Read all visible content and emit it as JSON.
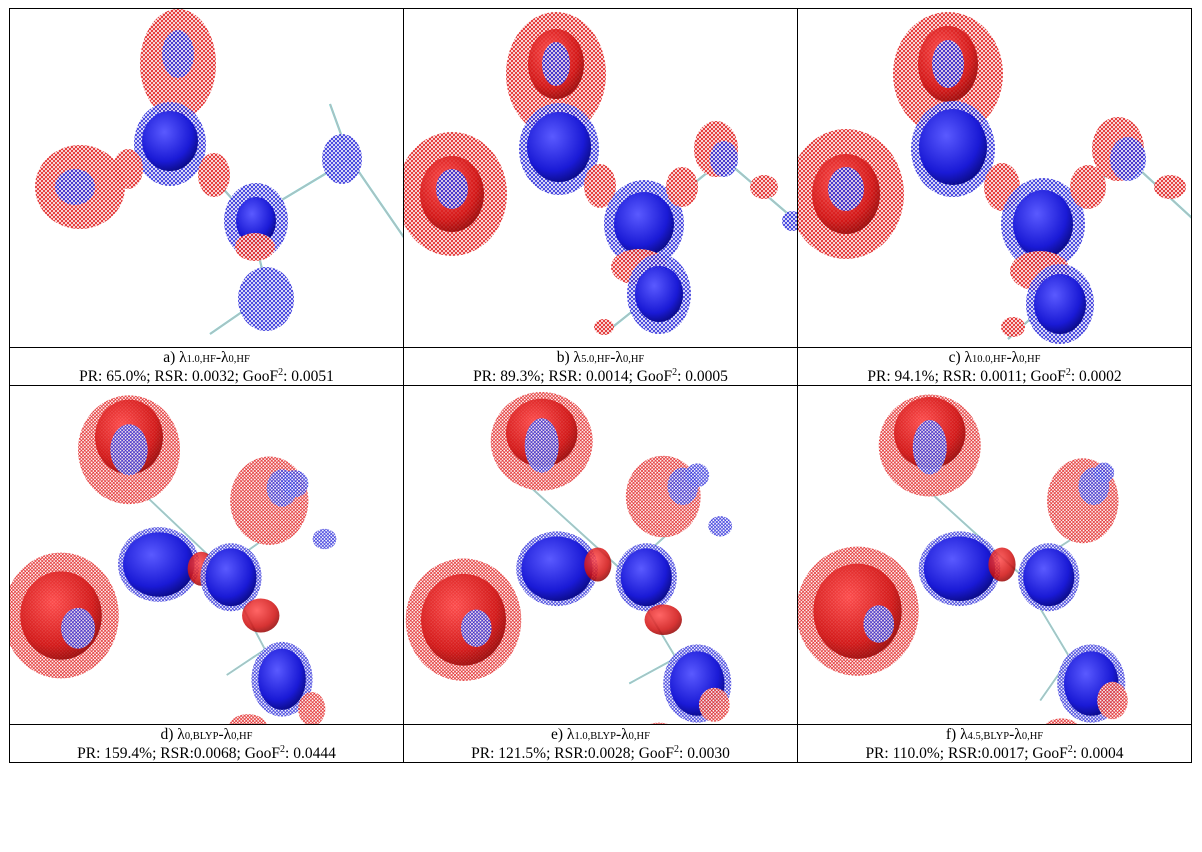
{
  "panels": [
    {
      "letter": "a)",
      "sub1": "1.0,HF",
      "sub2": "0,HF",
      "pr": "65.0%",
      "rsr": "0.0032",
      "goof": "0.0051",
      "rsr_sep": " "
    },
    {
      "letter": "b)",
      "sub1": "5.0,HF",
      "sub2": "0,HF",
      "pr": "89.3%",
      "rsr": "0.0014",
      "goof": "0.0005",
      "rsr_sep": " "
    },
    {
      "letter": "c)",
      "sub1": "10.0,HF",
      "sub2": "0,HF",
      "pr": "94.1%",
      "rsr": "0.0011",
      "goof": "0.0002",
      "rsr_sep": " "
    },
    {
      "letter": "d)",
      "sub1": "0,BLYP",
      "sub2": "0,HF",
      "pr": "159.4%",
      "rsr": "0.0068",
      "goof": "0.0444",
      "rsr_sep": ""
    },
    {
      "letter": "e)",
      "sub1": "1.0,BLYP",
      "sub2": "0,HF",
      "pr": "121.5%",
      "rsr": "0.0028",
      "goof": "0.0030",
      "rsr_sep": ""
    },
    {
      "letter": "f)",
      "sub1": "4.5,BLYP",
      "sub2": "0,HF",
      "pr": "110.0%",
      "rsr": "0.0017",
      "goof": "0.0004",
      "rsr_sep": ""
    }
  ],
  "labels": {
    "lambda": "λ",
    "minus": "-",
    "pr_prefix": "PR: ",
    "rsr_prefix": "RSR:",
    "goof_prefix": "GooF",
    "goof_sup": "2",
    "goof_colon": ": ",
    "sep": "; "
  },
  "colors": {
    "positive": "#e01818",
    "negative": "#1a1ad6",
    "bond": "#7fd3d3"
  }
}
